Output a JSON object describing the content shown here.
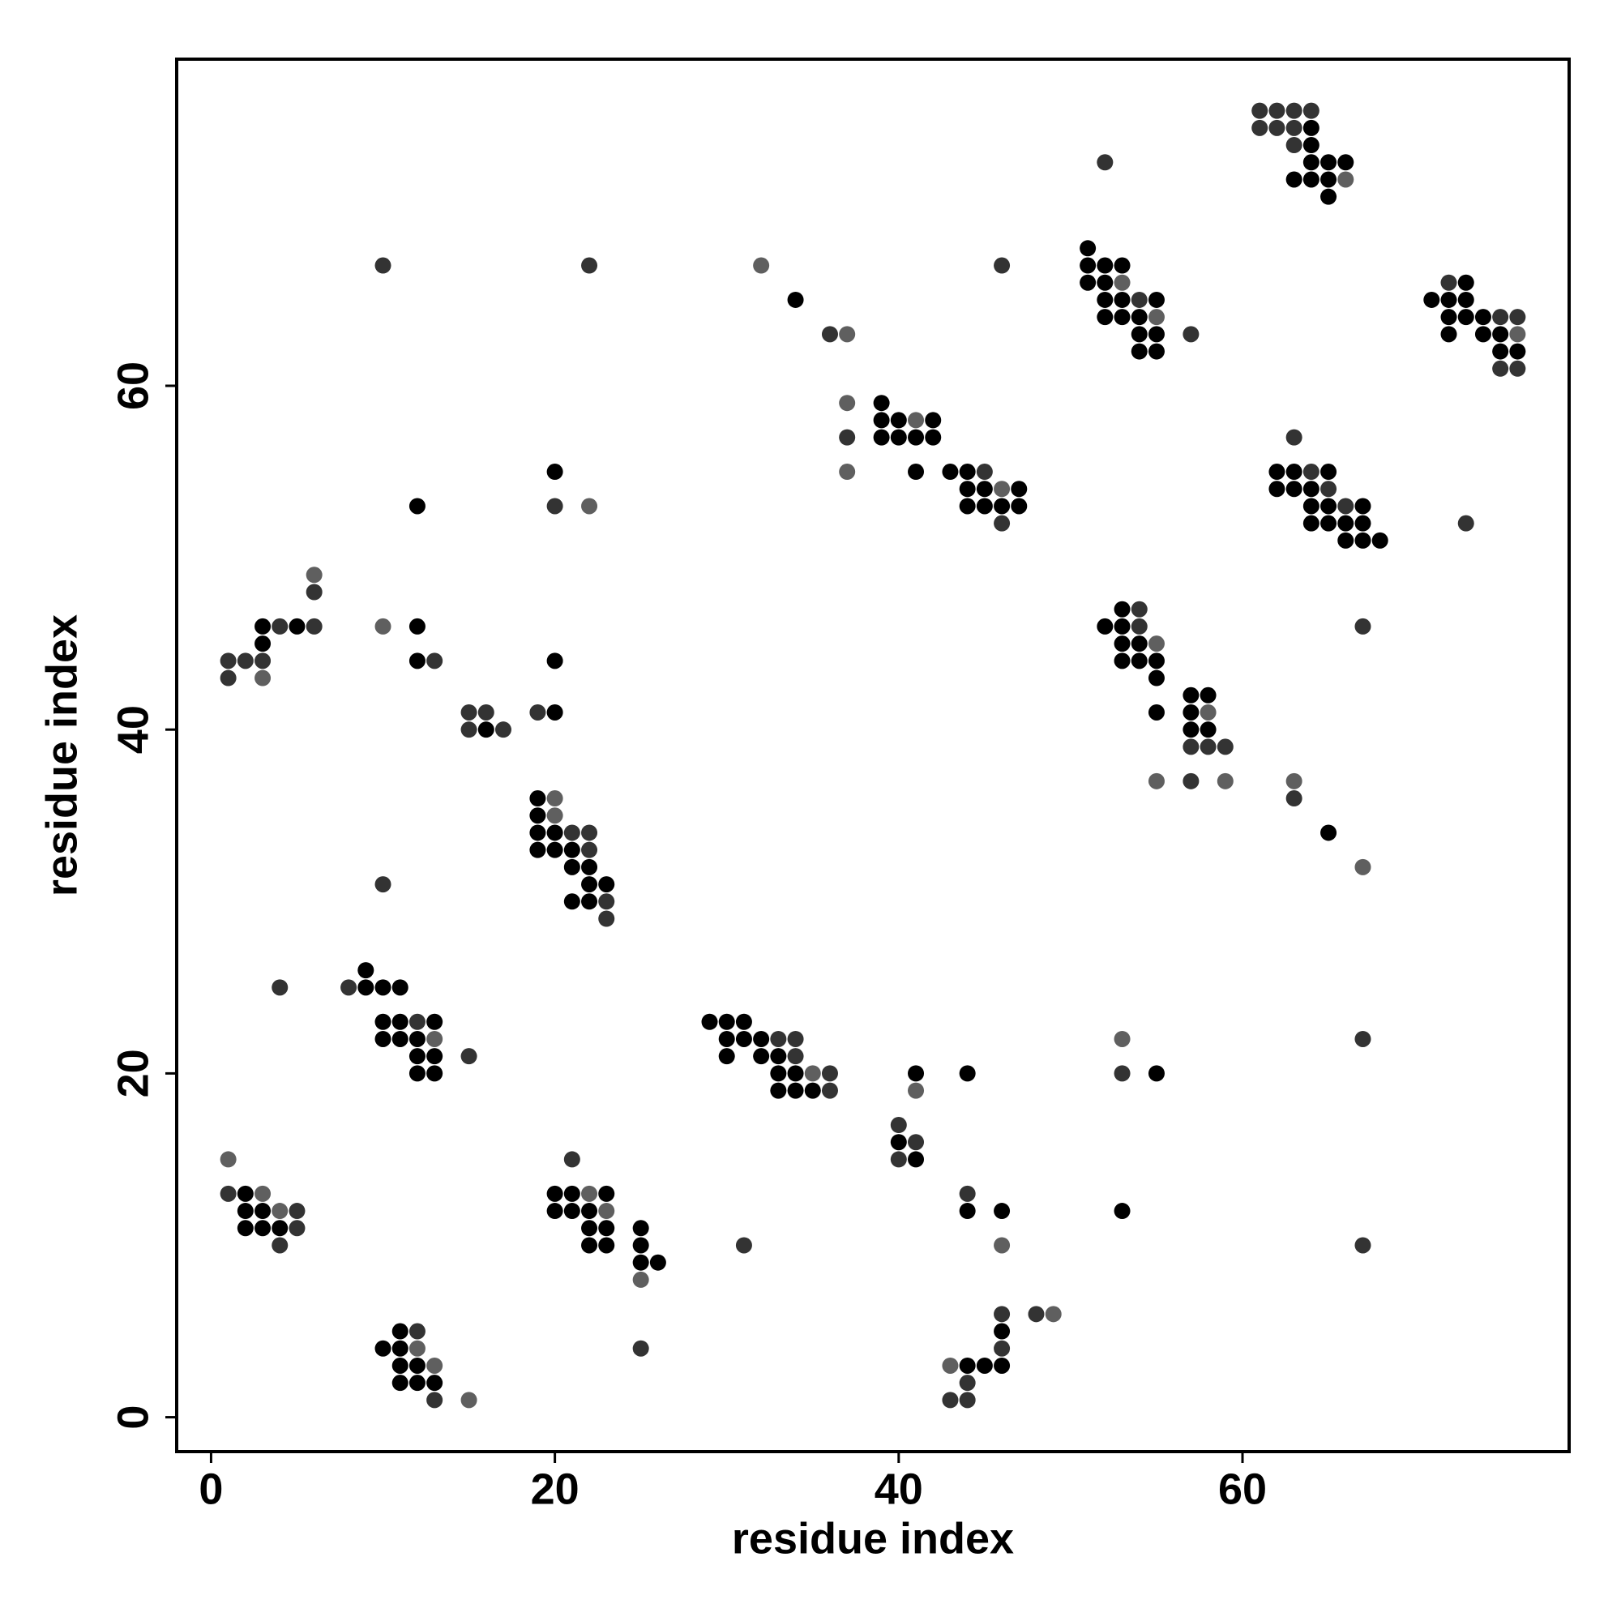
{
  "chart_data": {
    "type": "scatter",
    "xlabel": "residue index",
    "ylabel": "residue index",
    "xlim": [
      -2,
      79
    ],
    "ylim": [
      -2,
      79
    ],
    "xticks": [
      0,
      20,
      40,
      60
    ],
    "yticks": [
      0,
      20,
      40,
      60
    ],
    "series": [
      {
        "color": "#000000",
        "x": [
          64,
          64,
          64,
          65,
          66,
          63,
          64,
          65,
          65,
          51,
          51,
          52,
          53,
          51,
          52,
          73,
          34,
          52,
          53,
          55,
          71,
          72,
          73,
          52,
          53,
          54,
          72,
          73,
          74,
          54,
          55,
          72,
          74,
          75,
          54,
          55,
          75,
          76,
          39,
          39,
          40,
          42,
          39,
          40,
          41,
          42,
          20,
          41,
          43,
          44,
          62,
          63,
          65,
          44,
          45,
          47,
          62,
          63,
          64,
          12,
          44,
          45,
          46,
          47,
          64,
          65,
          67,
          64,
          65,
          66,
          67,
          66,
          67,
          68,
          53,
          3,
          5,
          12,
          52,
          53,
          3,
          53,
          54,
          12,
          20,
          53,
          54,
          55,
          55,
          57,
          58,
          20,
          55,
          57,
          16,
          57,
          58,
          19,
          19,
          19,
          20,
          65,
          19,
          20,
          21,
          21,
          22,
          22,
          23,
          21,
          22,
          9,
          9,
          10,
          11,
          10,
          11,
          13,
          29,
          30,
          31,
          10,
          11,
          12,
          30,
          31,
          32,
          12,
          13,
          30,
          32,
          33,
          12,
          13,
          33,
          34,
          41,
          44,
          55,
          33,
          34,
          35,
          40,
          41,
          2,
          20,
          21,
          23,
          2,
          3,
          20,
          21,
          22,
          44,
          46,
          53,
          2,
          3,
          4,
          22,
          23,
          25,
          22,
          23,
          25,
          25,
          26,
          11,
          46,
          10,
          11,
          11,
          12,
          44,
          45,
          46,
          11,
          12,
          13
        ],
        "y": [
          75,
          74,
          73,
          73,
          73,
          72,
          72,
          72,
          71,
          68,
          67,
          67,
          67,
          66,
          66,
          66,
          65,
          65,
          65,
          65,
          65,
          65,
          65,
          64,
          64,
          64,
          64,
          64,
          64,
          63,
          63,
          63,
          63,
          63,
          62,
          62,
          62,
          62,
          59,
          58,
          58,
          58,
          57,
          57,
          57,
          57,
          55,
          55,
          55,
          55,
          55,
          55,
          55,
          54,
          54,
          54,
          54,
          54,
          54,
          53,
          53,
          53,
          53,
          53,
          53,
          53,
          53,
          52,
          52,
          52,
          52,
          51,
          51,
          51,
          47,
          46,
          46,
          46,
          46,
          46,
          45,
          45,
          45,
          44,
          44,
          44,
          44,
          44,
          43,
          42,
          42,
          41,
          41,
          41,
          40,
          40,
          40,
          36,
          35,
          34,
          34,
          34,
          33,
          33,
          33,
          32,
          32,
          31,
          31,
          30,
          30,
          26,
          25,
          25,
          25,
          23,
          23,
          23,
          23,
          23,
          23,
          22,
          22,
          22,
          22,
          22,
          22,
          21,
          21,
          21,
          21,
          21,
          20,
          20,
          20,
          20,
          20,
          20,
          20,
          19,
          19,
          19,
          16,
          15,
          13,
          13,
          13,
          13,
          12,
          12,
          12,
          12,
          12,
          12,
          12,
          12,
          11,
          11,
          11,
          11,
          11,
          11,
          10,
          10,
          10,
          9,
          9,
          5,
          5,
          4,
          4,
          3,
          3,
          3,
          3,
          3,
          2,
          2,
          2
        ]
      },
      {
        "color": "#333333",
        "x": [
          61,
          62,
          63,
          64,
          61,
          62,
          63,
          63,
          52,
          10,
          22,
          46,
          72,
          54,
          75,
          76,
          36,
          57,
          75,
          76,
          37,
          63,
          45,
          64,
          65,
          20,
          66,
          46,
          73,
          6,
          54,
          4,
          6,
          54,
          67,
          1,
          2,
          3,
          13,
          1,
          15,
          16,
          19,
          15,
          17,
          57,
          58,
          59,
          57,
          63,
          21,
          22,
          22,
          10,
          23,
          23,
          4,
          8,
          12,
          33,
          34,
          67,
          15,
          34,
          36,
          53,
          36,
          40,
          41,
          21,
          40,
          1,
          44,
          5,
          5,
          4,
          31,
          67,
          46,
          48,
          12,
          25,
          46,
          44,
          13,
          43,
          44
        ],
        "y": [
          76,
          76,
          76,
          76,
          75,
          75,
          75,
          74,
          73,
          67,
          67,
          67,
          66,
          65,
          64,
          64,
          63,
          63,
          61,
          61,
          57,
          57,
          55,
          55,
          54,
          53,
          53,
          52,
          52,
          48,
          47,
          46,
          46,
          46,
          46,
          44,
          44,
          44,
          44,
          43,
          41,
          41,
          41,
          40,
          40,
          39,
          39,
          39,
          37,
          36,
          34,
          34,
          33,
          31,
          30,
          29,
          25,
          25,
          23,
          22,
          22,
          22,
          21,
          21,
          20,
          20,
          19,
          17,
          16,
          15,
          15,
          13,
          13,
          12,
          11,
          10,
          10,
          10,
          6,
          6,
          5,
          4,
          4,
          2,
          1,
          1,
          1
        ]
      },
      {
        "color": "#5f5f5f",
        "x": [
          66,
          32,
          53,
          55,
          37,
          76,
          37,
          41,
          37,
          46,
          22,
          6,
          10,
          55,
          3,
          58,
          55,
          59,
          63,
          20,
          20,
          67,
          13,
          53,
          35,
          41,
          1,
          3,
          22,
          4,
          23,
          46,
          25,
          49,
          12,
          13,
          43,
          15
        ],
        "y": [
          72,
          67,
          66,
          64,
          63,
          63,
          59,
          58,
          55,
          54,
          53,
          49,
          46,
          45,
          43,
          41,
          37,
          37,
          37,
          36,
          35,
          32,
          22,
          22,
          20,
          19,
          15,
          13,
          13,
          12,
          12,
          10,
          8,
          6,
          4,
          3,
          3,
          1
        ]
      }
    ]
  }
}
